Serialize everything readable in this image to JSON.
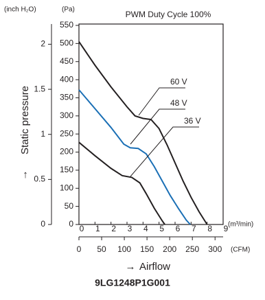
{
  "chart_data": {
    "type": "line",
    "title": "PWM Duty Cycle 100%",
    "y_label": "Static pressure",
    "x_label": "Airflow",
    "footer": "9LG1248P1G001",
    "y_unit": "(Pa)",
    "y2_unit": "(inch H₂O)",
    "x_unit": "(m³/min)",
    "x2_unit": "(CFM)",
    "xlim": [
      0,
      9
    ],
    "xticks": [
      0,
      1,
      2,
      3,
      4,
      5,
      6,
      7,
      8,
      9
    ],
    "x2lim": [
      0,
      317.8
    ],
    "x2ticks": [
      0,
      50,
      100,
      150,
      200,
      250,
      300
    ],
    "ylim": [
      0,
      550
    ],
    "yticks": [
      0,
      50,
      100,
      150,
      200,
      250,
      300,
      350,
      400,
      450,
      500,
      550
    ],
    "y2lim": [
      0,
      2.209
    ],
    "y2ticks": [
      0,
      0.5,
      1,
      1.5,
      2
    ],
    "series": [
      {
        "name": "60 V",
        "color": "#231f20",
        "x": [
          0,
          1,
          2,
          3,
          3.5,
          4,
          4.5,
          5,
          5.5,
          6,
          6.5,
          7,
          7.5,
          8
        ],
        "values": [
          505,
          440,
          380,
          325,
          300,
          293,
          290,
          265,
          220,
          170,
          120,
          75,
          35,
          0
        ]
      },
      {
        "name": "48 V",
        "color": "#1a6fb5",
        "x": [
          0,
          1,
          2,
          2.8,
          3.2,
          3.7,
          4.2,
          4.7,
          5.2,
          5.7,
          6.2,
          6.7,
          6.95
        ],
        "values": [
          372,
          320,
          268,
          222,
          212,
          210,
          195,
          160,
          120,
          80,
          45,
          12,
          0
        ]
      },
      {
        "name": "36 V",
        "color": "#231f20",
        "x": [
          0,
          1,
          2,
          2.7,
          3.3,
          3.8,
          4.2,
          4.7,
          5.2,
          5.36
        ],
        "values": [
          227,
          190,
          155,
          135,
          130,
          115,
          85,
          45,
          10,
          0
        ]
      }
    ]
  }
}
